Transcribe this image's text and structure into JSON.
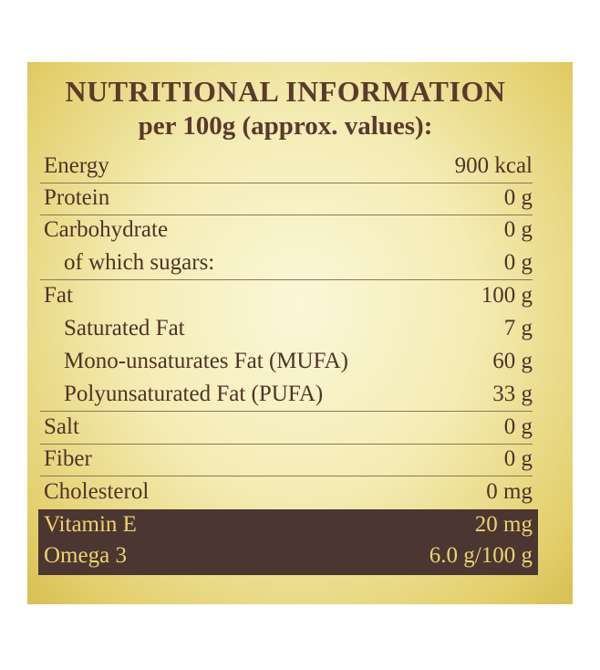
{
  "header": {
    "title": "NUTRITIONAL INFORMATION",
    "subtitle": "per 100g (approx. values):"
  },
  "table": {
    "rows": [
      [
        "Energy",
        "900 kcal"
      ],
      [
        "Protein",
        "0 g"
      ],
      [
        "Carbohydrate",
        "0 g"
      ],
      [
        "of which sugars:",
        "0 g"
      ],
      [
        "Fat",
        "100 g"
      ],
      [
        "Saturated Fat",
        "7 g"
      ],
      [
        "Mono-unsaturates Fat (MUFA)",
        "60 g"
      ],
      [
        "Polyunsaturated Fat (PUFA)",
        "33 g"
      ],
      [
        "Salt",
        "0 g"
      ],
      [
        "Fiber",
        "0 g"
      ],
      [
        "Cholesterol",
        "0 mg"
      ],
      [
        "Vitamin E",
        "20 mg"
      ],
      [
        "Omega 3",
        "6.0 g/100 g"
      ]
    ]
  }
}
